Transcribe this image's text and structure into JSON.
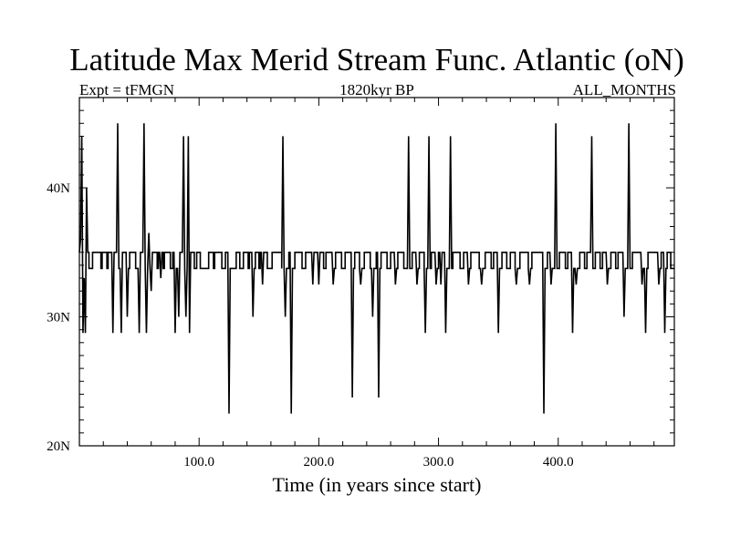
{
  "chart_data": {
    "type": "line",
    "title": "Latitude Max Merid Stream Func. Atlantic (oN)",
    "subtitle_left": "Expt = tFMGN",
    "subtitle_center": "1820kyr BP",
    "subtitle_right": "ALL_MONTHS",
    "xlabel": "Time (in years since start)",
    "ylabel": "",
    "xlim": [
      0,
      497
    ],
    "ylim": [
      20,
      47
    ],
    "x_ticks": [
      {
        "value": 100,
        "label": "100.0"
      },
      {
        "value": 200,
        "label": "200.0"
      },
      {
        "value": 300,
        "label": "300.0"
      },
      {
        "value": 400,
        "label": "400.0"
      }
    ],
    "y_ticks": [
      {
        "value": 20,
        "label": "20N"
      },
      {
        "value": 30,
        "label": "30N"
      },
      {
        "value": 40,
        "label": "40N"
      }
    ],
    "grid": false,
    "baseline": 33.75,
    "high": 35.0,
    "series": [
      {
        "spikes": [
          {
            "x": 1,
            "y": 36
          },
          {
            "x": 2,
            "y": 44
          },
          {
            "x": 3,
            "y": 28.75
          },
          {
            "x": 4,
            "y": 33
          },
          {
            "x": 5,
            "y": 28.75
          },
          {
            "x": 6,
            "y": 40
          },
          {
            "x": 28,
            "y": 28.75
          },
          {
            "x": 32,
            "y": 45
          },
          {
            "x": 35,
            "y": 28.75
          },
          {
            "x": 40,
            "y": 30
          },
          {
            "x": 50,
            "y": 28.75
          },
          {
            "x": 54,
            "y": 45
          },
          {
            "x": 56,
            "y": 28.75
          },
          {
            "x": 58,
            "y": 36.5
          },
          {
            "x": 60,
            "y": 32
          },
          {
            "x": 68,
            "y": 33
          },
          {
            "x": 80,
            "y": 28.75
          },
          {
            "x": 83,
            "y": 30
          },
          {
            "x": 87,
            "y": 44
          },
          {
            "x": 89,
            "y": 30
          },
          {
            "x": 91,
            "y": 44
          },
          {
            "x": 92,
            "y": 28.75
          },
          {
            "x": 125,
            "y": 22.5
          },
          {
            "x": 145,
            "y": 30
          },
          {
            "x": 153,
            "y": 32.5
          },
          {
            "x": 170,
            "y": 44
          },
          {
            "x": 172,
            "y": 30
          },
          {
            "x": 177,
            "y": 22.5
          },
          {
            "x": 195,
            "y": 32.5
          },
          {
            "x": 200,
            "y": 32.5
          },
          {
            "x": 212,
            "y": 32.5
          },
          {
            "x": 228,
            "y": 23.75
          },
          {
            "x": 235,
            "y": 32.5
          },
          {
            "x": 245,
            "y": 30
          },
          {
            "x": 250,
            "y": 23.75
          },
          {
            "x": 264,
            "y": 32.5
          },
          {
            "x": 275,
            "y": 44
          },
          {
            "x": 282,
            "y": 32.5
          },
          {
            "x": 289,
            "y": 28.75
          },
          {
            "x": 292,
            "y": 44
          },
          {
            "x": 298,
            "y": 32.5
          },
          {
            "x": 302,
            "y": 32.5
          },
          {
            "x": 306,
            "y": 28.75
          },
          {
            "x": 310,
            "y": 44
          },
          {
            "x": 325,
            "y": 32.5
          },
          {
            "x": 336,
            "y": 32.5
          },
          {
            "x": 350,
            "y": 28.75
          },
          {
            "x": 365,
            "y": 32.5
          },
          {
            "x": 376,
            "y": 32.5
          },
          {
            "x": 388,
            "y": 22.5
          },
          {
            "x": 394,
            "y": 32.5
          },
          {
            "x": 398,
            "y": 45
          },
          {
            "x": 412,
            "y": 28.75
          },
          {
            "x": 415,
            "y": 32.5
          },
          {
            "x": 428,
            "y": 44
          },
          {
            "x": 441,
            "y": 32.5
          },
          {
            "x": 455,
            "y": 30
          },
          {
            "x": 459,
            "y": 45
          },
          {
            "x": 470,
            "y": 32.5
          },
          {
            "x": 473,
            "y": 28.75
          },
          {
            "x": 484,
            "y": 32.5
          },
          {
            "x": 489,
            "y": 28.75
          }
        ],
        "high_runs": [
          [
            0,
            7
          ],
          [
            11,
            17
          ],
          [
            19,
            22
          ],
          [
            24,
            27
          ],
          [
            29,
            31
          ],
          [
            36,
            39
          ],
          [
            42,
            46
          ],
          [
            51,
            53
          ],
          [
            61,
            64
          ],
          [
            66,
            69
          ],
          [
            71,
            75
          ],
          [
            78,
            79
          ],
          [
            84,
            86
          ],
          [
            93,
            95
          ],
          [
            98,
            100
          ],
          [
            108,
            111
          ],
          [
            113,
            118
          ],
          [
            122,
            124
          ],
          [
            131,
            133
          ],
          [
            137,
            140
          ],
          [
            142,
            144
          ],
          [
            147,
            149
          ],
          [
            151,
            156
          ],
          [
            161,
            168
          ],
          [
            175,
            176
          ],
          [
            180,
            185
          ],
          [
            189,
            194
          ],
          [
            196,
            203
          ],
          [
            206,
            211
          ],
          [
            214,
            218
          ],
          [
            222,
            227
          ],
          [
            230,
            233
          ],
          [
            238,
            242
          ],
          [
            248,
            249
          ],
          [
            252,
            256
          ],
          [
            260,
            263
          ],
          [
            266,
            270
          ],
          [
            278,
            281
          ],
          [
            284,
            287
          ],
          [
            294,
            297
          ],
          [
            300,
            305
          ],
          [
            312,
            317
          ],
          [
            321,
            324
          ],
          [
            327,
            333
          ],
          [
            339,
            343
          ],
          [
            346,
            349
          ],
          [
            353,
            356
          ],
          [
            360,
            363
          ],
          [
            368,
            374
          ],
          [
            378,
            387
          ],
          [
            391,
            393
          ],
          [
            401,
            405
          ],
          [
            408,
            411
          ],
          [
            418,
            421
          ],
          [
            424,
            427
          ],
          [
            431,
            434
          ],
          [
            437,
            440
          ],
          [
            444,
            447
          ],
          [
            450,
            454
          ],
          [
            462,
            469
          ],
          [
            475,
            483
          ],
          [
            486,
            488
          ],
          [
            491,
            493
          ]
        ]
      }
    ]
  }
}
